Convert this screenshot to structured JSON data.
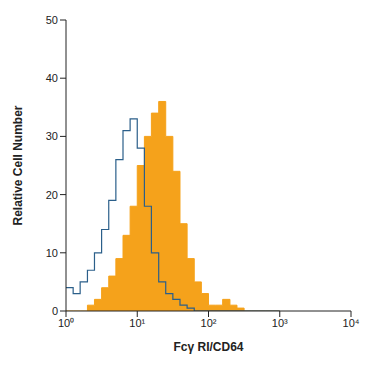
{
  "chart_data": {
    "type": "histogram",
    "x_label": "Fcγ RI/CD64",
    "y_label": "Relative Cell Number",
    "log": "x",
    "bins": [
      1,
      1.26,
      1.58,
      2,
      2.51,
      3.16,
      3.98,
      5.01,
      6.31,
      7.94,
      10,
      12.6,
      15.8,
      20,
      25.1,
      31.6,
      39.8,
      50.1,
      63.1,
      79.4,
      100,
      126,
      158,
      200,
      251,
      316,
      398,
      501,
      631,
      794,
      1000
    ],
    "series": [
      {
        "color": "#2b5f8a",
        "type": "line",
        "values": [
          4,
          3,
          5,
          7,
          10,
          14,
          19,
          26,
          31,
          33,
          28,
          18,
          10,
          5,
          3,
          2,
          1,
          0.5,
          0,
          0,
          0,
          0,
          0,
          0,
          0,
          0,
          0,
          0,
          0,
          0
        ]
      },
      {
        "color": "#f5a21b",
        "type": "area",
        "values": [
          0,
          0,
          0,
          1,
          2,
          4,
          6,
          9,
          13,
          18,
          25,
          30,
          34,
          36,
          30,
          24,
          15,
          9,
          5,
          3,
          1,
          1,
          2,
          1,
          0.5,
          0,
          0,
          0,
          0,
          0
        ]
      }
    ],
    "xlim": [
      1,
      10000
    ],
    "xticks": [
      {
        "value": 1,
        "label": "10⁰"
      },
      {
        "value": 10,
        "label": "10¹"
      },
      {
        "value": 100,
        "label": "10²"
      },
      {
        "value": 1000,
        "label": "10³"
      },
      {
        "value": 10000,
        "label": "10⁴"
      }
    ],
    "ylim": [
      0,
      50
    ],
    "yticks": [
      0,
      10,
      20,
      30,
      40,
      50
    ]
  }
}
